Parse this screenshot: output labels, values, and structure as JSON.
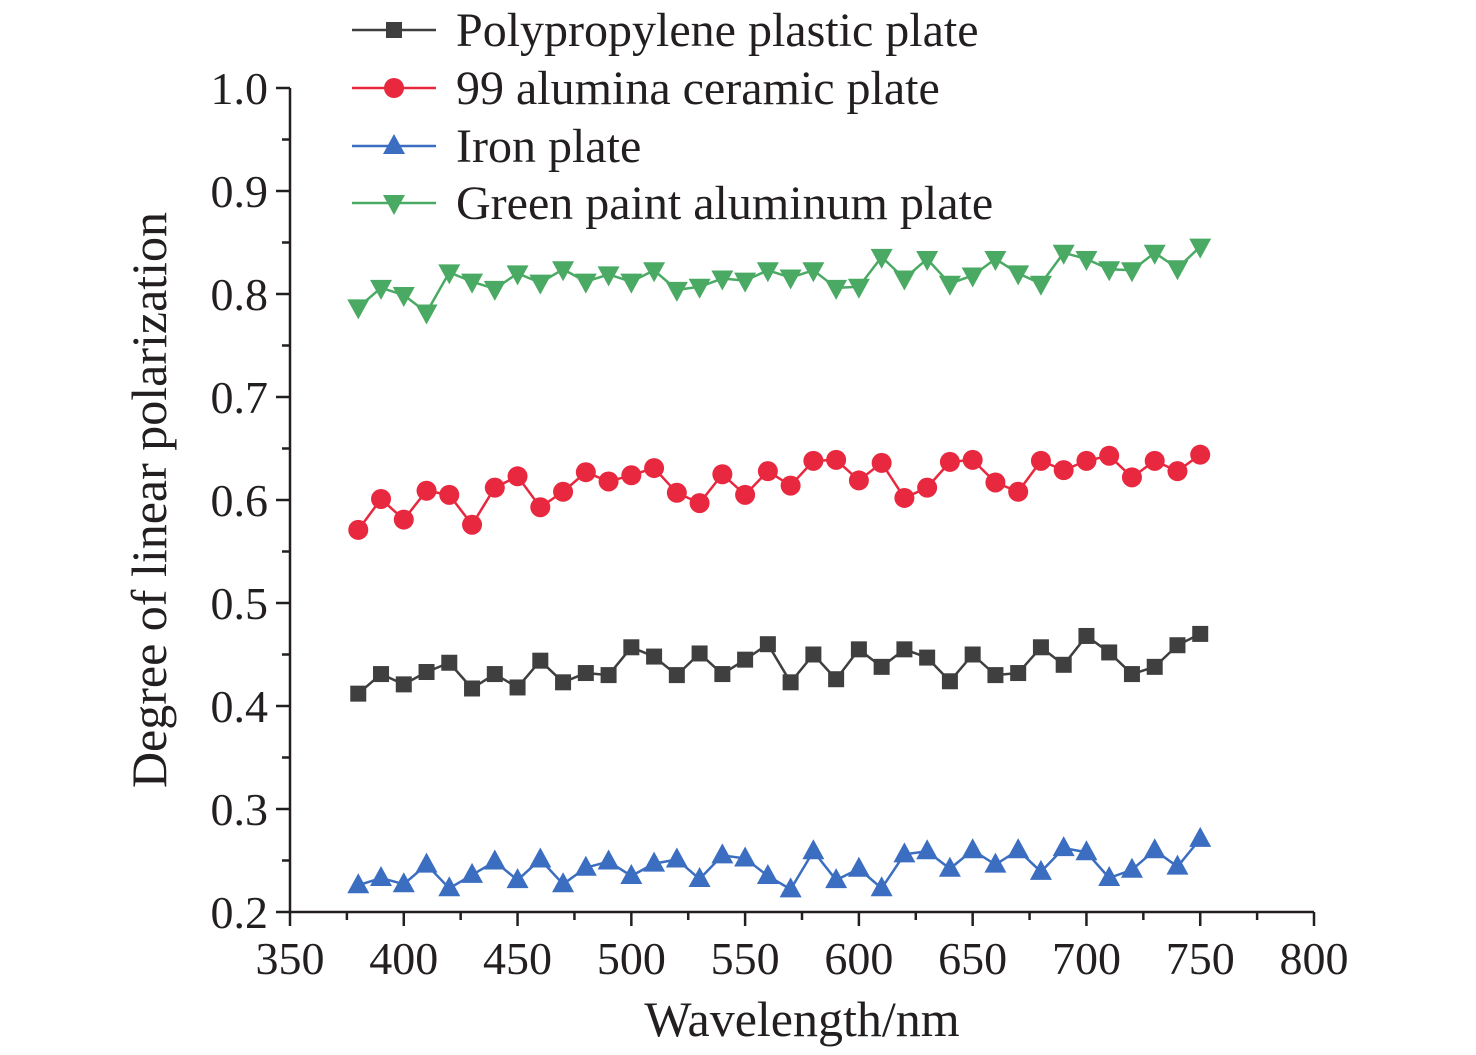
{
  "chart_data": {
    "type": "line",
    "title": "",
    "xlabel": "Wavelength/nm",
    "ylabel": "Degree of linear polarization",
    "xlim": [
      350,
      800
    ],
    "ylim": [
      0.2,
      1.0
    ],
    "xticks": [
      "350",
      "400",
      "450",
      "500",
      "550",
      "600",
      "650",
      "700",
      "750",
      "800"
    ],
    "yticks": [
      "0.2",
      "0.3",
      "0.4",
      "0.5",
      "0.6",
      "0.7",
      "0.8",
      "0.9",
      "1.0"
    ],
    "legend_position": "top",
    "x": [
      380,
      390,
      400,
      410,
      420,
      430,
      440,
      450,
      460,
      470,
      480,
      490,
      500,
      510,
      520,
      530,
      540,
      550,
      560,
      570,
      580,
      590,
      600,
      610,
      620,
      630,
      640,
      650,
      660,
      670,
      680,
      690,
      700,
      710,
      720,
      730,
      740,
      750
    ],
    "series": [
      {
        "name": "Polypropylene plastic plate",
        "color": "#3f3f3f",
        "marker": "square",
        "values": [
          0.412,
          0.431,
          0.421,
          0.433,
          0.442,
          0.417,
          0.431,
          0.418,
          0.444,
          0.423,
          0.432,
          0.43,
          0.457,
          0.448,
          0.43,
          0.451,
          0.431,
          0.445,
          0.46,
          0.423,
          0.45,
          0.426,
          0.455,
          0.438,
          0.455,
          0.447,
          0.424,
          0.45,
          0.43,
          0.432,
          0.457,
          0.44,
          0.468,
          0.452,
          0.431,
          0.438,
          0.459,
          0.47
        ]
      },
      {
        "name": "99 alumina ceramic plate",
        "color": "#e8283f",
        "marker": "circle",
        "values": [
          0.571,
          0.601,
          0.581,
          0.609,
          0.605,
          0.576,
          0.612,
          0.623,
          0.593,
          0.608,
          0.627,
          0.618,
          0.624,
          0.631,
          0.607,
          0.597,
          0.625,
          0.605,
          0.628,
          0.614,
          0.638,
          0.639,
          0.619,
          0.636,
          0.602,
          0.612,
          0.637,
          0.639,
          0.617,
          0.608,
          0.638,
          0.629,
          0.638,
          0.643,
          0.622,
          0.638,
          0.628,
          0.644
        ]
      },
      {
        "name": "Iron plate",
        "color": "#3b6ec1",
        "marker": "triangle-up",
        "values": [
          0.226,
          0.233,
          0.227,
          0.246,
          0.223,
          0.236,
          0.249,
          0.231,
          0.251,
          0.227,
          0.243,
          0.249,
          0.235,
          0.247,
          0.251,
          0.232,
          0.255,
          0.252,
          0.235,
          0.222,
          0.259,
          0.231,
          0.242,
          0.223,
          0.256,
          0.259,
          0.242,
          0.26,
          0.246,
          0.26,
          0.239,
          0.262,
          0.258,
          0.233,
          0.241,
          0.26,
          0.244,
          0.271
        ]
      },
      {
        "name": "Green paint aluminum plate",
        "color": "#4aaa64",
        "marker": "triangle-down",
        "values": [
          0.787,
          0.806,
          0.799,
          0.782,
          0.821,
          0.812,
          0.805,
          0.82,
          0.811,
          0.824,
          0.812,
          0.819,
          0.812,
          0.823,
          0.804,
          0.807,
          0.815,
          0.813,
          0.823,
          0.816,
          0.823,
          0.806,
          0.807,
          0.836,
          0.815,
          0.834,
          0.81,
          0.818,
          0.834,
          0.82,
          0.81,
          0.84,
          0.834,
          0.824,
          0.823,
          0.84,
          0.825,
          0.846
        ]
      }
    ]
  }
}
